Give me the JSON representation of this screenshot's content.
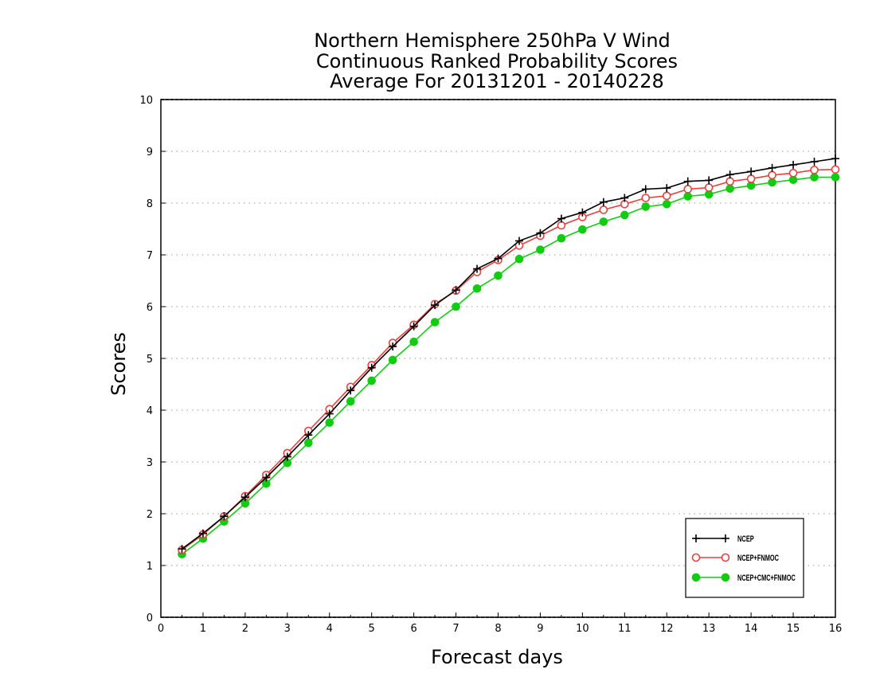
{
  "chart_data": {
    "type": "line",
    "title_lines": [
      "Northern Hemisphere 250hPa V Wind",
      "Continuous Ranked Probability Scores",
      "Average For 20131201 - 20140228"
    ],
    "xlabel": "Forecast days",
    "ylabel": "Scores",
    "xlim": [
      0,
      16
    ],
    "ylim": [
      0,
      10
    ],
    "x_ticks": [
      "0",
      "1",
      "2",
      "3",
      "4",
      "5",
      "6",
      "7",
      "8",
      "9",
      "10",
      "11",
      "12",
      "13",
      "14",
      "15",
      "16"
    ],
    "y_ticks": [
      "0",
      "1",
      "2",
      "3",
      "4",
      "5",
      "6",
      "7",
      "8",
      "9",
      "10"
    ],
    "grid": "horizontal dotted",
    "legend_position": "bottom-right",
    "x": [
      0.5,
      1,
      1.5,
      2,
      2.5,
      3,
      3.5,
      4,
      4.5,
      5,
      5.5,
      6,
      6.5,
      7,
      7.5,
      8,
      8.5,
      9,
      9.5,
      10,
      10.5,
      11,
      11.5,
      12,
      12.5,
      13,
      13.5,
      14,
      14.5,
      15,
      15.5,
      16
    ],
    "series": [
      {
        "name": "NCEP",
        "color": "#000000",
        "marker": "plus",
        "values": [
          1.32,
          1.62,
          1.95,
          2.32,
          2.7,
          3.1,
          3.52,
          3.93,
          4.38,
          4.82,
          5.23,
          5.62,
          6.03,
          6.32,
          6.73,
          6.93,
          7.27,
          7.42,
          7.7,
          7.82,
          8.02,
          8.1,
          8.27,
          8.29,
          8.42,
          8.44,
          8.55,
          8.61,
          8.68,
          8.74,
          8.8,
          8.86
        ]
      },
      {
        "name": "NCEP+FNMOC",
        "color": "#e8403f",
        "marker": "open-circle",
        "values": [
          1.3,
          1.6,
          1.95,
          2.34,
          2.75,
          3.17,
          3.6,
          4.02,
          4.45,
          4.87,
          5.3,
          5.65,
          6.05,
          6.31,
          6.67,
          6.9,
          7.18,
          7.37,
          7.57,
          7.73,
          7.87,
          7.98,
          8.1,
          8.14,
          8.27,
          8.3,
          8.42,
          8.47,
          8.54,
          8.58,
          8.64,
          8.65
        ]
      },
      {
        "name": "NCEP+CMC+FNMOC",
        "color": "#11cc11",
        "marker": "filled-circle",
        "values": [
          1.22,
          1.52,
          1.85,
          2.2,
          2.58,
          2.98,
          3.37,
          3.76,
          4.17,
          4.57,
          4.97,
          5.32,
          5.7,
          6.0,
          6.35,
          6.6,
          6.92,
          7.1,
          7.32,
          7.49,
          7.64,
          7.77,
          7.93,
          7.98,
          8.13,
          8.17,
          8.28,
          8.34,
          8.4,
          8.45,
          8.5,
          8.5
        ]
      }
    ]
  }
}
